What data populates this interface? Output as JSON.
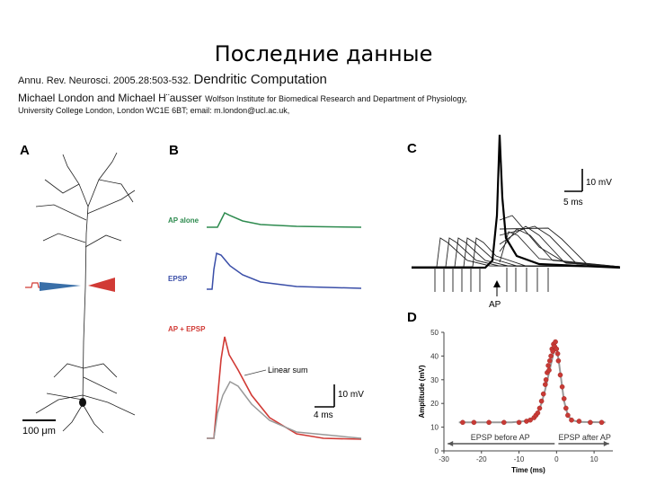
{
  "slide": {
    "title": "Последние данные"
  },
  "citation": {
    "journal": "Annu. Rev. Neurosci. 2005.28:503-532.",
    "title": "Dendritic Computation",
    "authors": "Michael London and Michael H¨ausser",
    "affiliation1": "Wolfson Institute for Biomedical Research and Department of Physiology,",
    "affiliation2": "University College London, London WC1E 6BT; email: m.london@ucl.ac.uk,"
  },
  "figure": {
    "panelA": {
      "letter": "A",
      "scalebar": "100 μm"
    },
    "panelB": {
      "letter": "B",
      "trace1": "AP alone",
      "trace2": "EPSP",
      "trace3": "AP + EPSP",
      "linear_sum": "Linear sum",
      "scale_v": "10 mV",
      "scale_t": "4 ms",
      "colors": {
        "ap_alone": "#2e8b4f",
        "epsp": "#3a4ea8",
        "ap_epsp": "#d13a35",
        "linear": "#999999"
      }
    },
    "panelC": {
      "letter": "C",
      "scale_v": "10 mV",
      "scale_t": "5 ms",
      "marker": "AP"
    },
    "panelD": {
      "letter": "D",
      "label_before": "EPSP before AP",
      "label_after": "EPSP after AP"
    }
  },
  "chart_data": {
    "type": "scatter",
    "xlabel": "Time (ms)",
    "ylabel": "Amplitude (mV)",
    "xlim": [
      -30,
      15
    ],
    "ylim": [
      0,
      50
    ],
    "xticks": [
      -30,
      -20,
      -10,
      0,
      10
    ],
    "yticks": [
      0,
      10,
      20,
      30,
      40,
      50
    ],
    "points": [
      [
        -25,
        12
      ],
      [
        -22,
        12
      ],
      [
        -18,
        12
      ],
      [
        -14,
        12
      ],
      [
        -10,
        12
      ],
      [
        -8,
        12.5
      ],
      [
        -7,
        13
      ],
      [
        -6,
        14
      ],
      [
        -5.5,
        15
      ],
      [
        -5,
        16
      ],
      [
        -4.5,
        18
      ],
      [
        -4,
        21
      ],
      [
        -3.5,
        24
      ],
      [
        -3,
        28
      ],
      [
        -2.8,
        30
      ],
      [
        -2.5,
        33
      ],
      [
        -2.2,
        36
      ],
      [
        -2,
        34
      ],
      [
        -1.8,
        38
      ],
      [
        -1.5,
        40
      ],
      [
        -1.2,
        43
      ],
      [
        -1,
        42
      ],
      [
        -0.8,
        45
      ],
      [
        -0.5,
        44
      ],
      [
        -0.3,
        46
      ],
      [
        0,
        43
      ],
      [
        0.3,
        41
      ],
      [
        0.5,
        38
      ],
      [
        1,
        32
      ],
      [
        1.5,
        27
      ],
      [
        2,
        22
      ],
      [
        2.5,
        18
      ],
      [
        3,
        15
      ],
      [
        4,
        13
      ],
      [
        6,
        12.5
      ],
      [
        9,
        12
      ],
      [
        12,
        12
      ]
    ],
    "fit": [
      [
        -26,
        12
      ],
      [
        -12,
        12
      ],
      [
        -8,
        12.6
      ],
      [
        -6,
        14
      ],
      [
        -5,
        16
      ],
      [
        -4,
        20
      ],
      [
        -3,
        26
      ],
      [
        -2,
        33
      ],
      [
        -1,
        40
      ],
      [
        -0.5,
        43
      ],
      [
        0,
        43
      ],
      [
        0.5,
        39
      ],
      [
        1,
        33
      ],
      [
        1.5,
        27
      ],
      [
        2,
        21
      ],
      [
        3,
        15
      ],
      [
        4,
        13
      ],
      [
        6,
        12.2
      ],
      [
        13,
        12
      ]
    ]
  }
}
